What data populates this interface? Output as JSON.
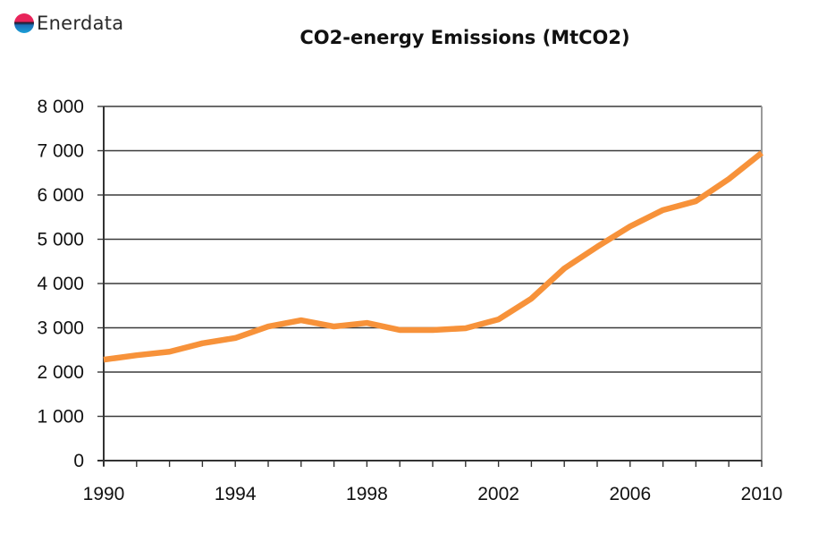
{
  "logo": {
    "text": "Enerdata",
    "icon": "enerdata-globe-icon"
  },
  "chart_data": {
    "type": "line",
    "title": "CO2-energy Emissions (MtCO2)",
    "xlabel": "",
    "ylabel": "",
    "x": [
      1990,
      1991,
      1992,
      1993,
      1994,
      1995,
      1996,
      1997,
      1998,
      1999,
      2000,
      2001,
      2002,
      2003,
      2004,
      2005,
      2006,
      2007,
      2008,
      2009,
      2010
    ],
    "series": [
      {
        "name": "CO2-energy Emissions",
        "color": "#f7923a",
        "values": [
          2280,
          2380,
          2460,
          2650,
          2770,
          3030,
          3170,
          3030,
          3110,
          2950,
          2950,
          2990,
          3190,
          3660,
          4340,
          4830,
          5290,
          5660,
          5860,
          6360,
          6950
        ]
      }
    ],
    "xlim": [
      1990,
      2010
    ],
    "ylim": [
      0,
      8000
    ],
    "x_ticks": [
      1990,
      1994,
      1998,
      2002,
      2006,
      2010
    ],
    "x_tick_labels": [
      "1990",
      "1994",
      "1998",
      "2002",
      "2006",
      "2010"
    ],
    "y_ticks": [
      0,
      1000,
      2000,
      3000,
      4000,
      5000,
      6000,
      7000,
      8000
    ],
    "y_tick_labels": [
      "0",
      "1 000",
      "2 000",
      "3 000",
      "4 000",
      "5 000",
      "6 000",
      "7 000",
      "8 000"
    ],
    "grid": true,
    "legend": "none"
  }
}
